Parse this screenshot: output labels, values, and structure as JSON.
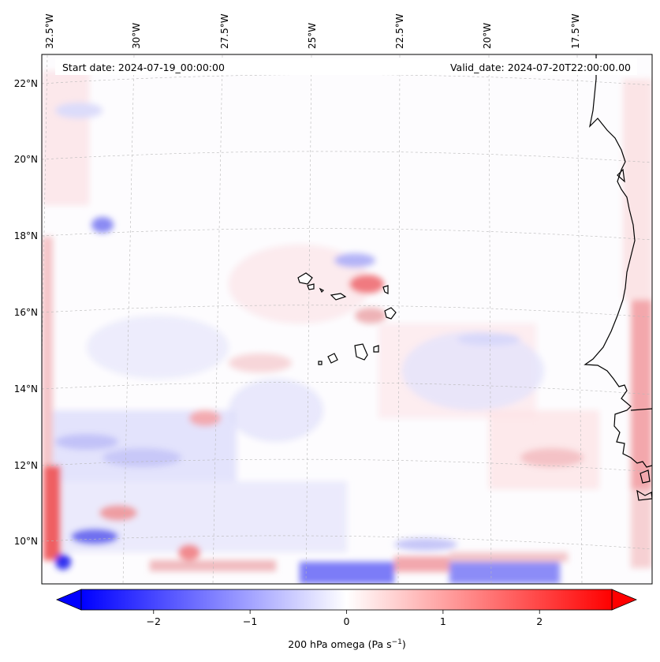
{
  "map": {
    "start_date_label": "Start date: 2024-07-19_00:00:00",
    "valid_date_label": "Valid_date: 2024-07-20T22:00:00.00",
    "lon_labels": [
      "32.5°W",
      "30°W",
      "27.5°W",
      "25°W",
      "22.5°W",
      "20°W",
      "17.5°W"
    ],
    "lat_labels": [
      "22°N",
      "20°N",
      "18°N",
      "16°N",
      "14°N",
      "12°N",
      "10°N"
    ],
    "extent": {
      "lon_min": -32.7,
      "lon_max": -15.8,
      "lat_min": 8.9,
      "lat_max": 22.7
    },
    "field": "omega at 200 hPa",
    "colormap": "bwr",
    "colors": {
      "low": "#0000ff",
      "mid": "#ffffff",
      "high": "#ff0000",
      "coast": "#000000",
      "grid": "#b8b8b8"
    }
  },
  "colorbar": {
    "title_prefix": "200 hPa omega (Pa s",
    "title_exponent": "−1",
    "title_suffix": ")",
    "vmin": -2.75,
    "vmax": 2.75,
    "ticks": [
      -2,
      -1,
      0,
      1,
      2
    ],
    "tick_labels": [
      "−2",
      "−1",
      "0",
      "1",
      "2"
    ],
    "extend": "both"
  }
}
